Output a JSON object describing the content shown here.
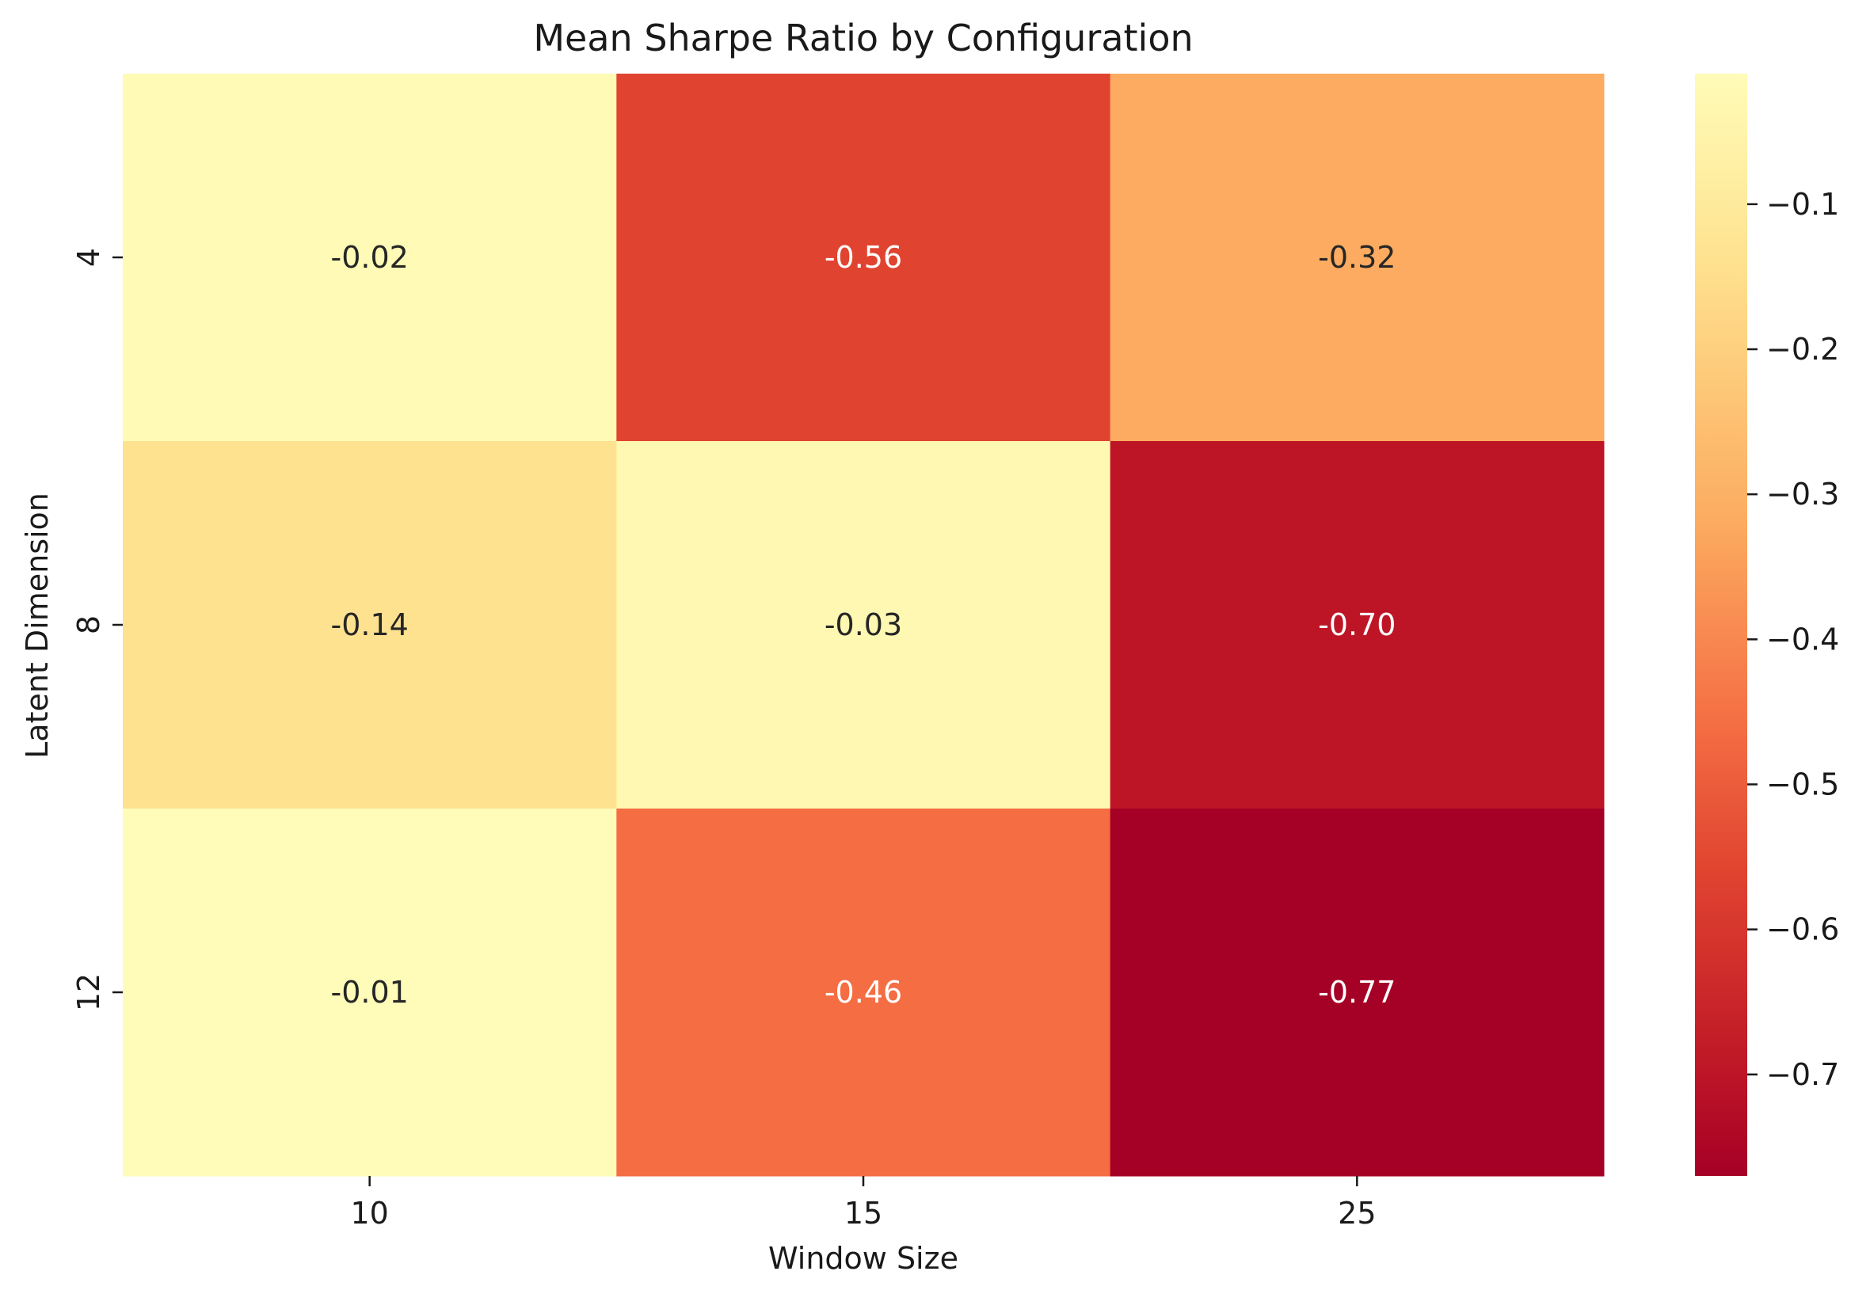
{
  "chart_data": {
    "type": "heatmap",
    "title": "Mean Sharpe Ratio by Configuration",
    "xlabel": "Window Size",
    "ylabel": "Latent Dimension",
    "x_categories": [
      "10",
      "15",
      "25"
    ],
    "y_categories": [
      "4",
      "8",
      "12"
    ],
    "values": [
      [
        -0.02,
        -0.56,
        -0.32
      ],
      [
        -0.14,
        -0.03,
        -0.7
      ],
      [
        -0.01,
        -0.46,
        -0.77
      ]
    ],
    "cell_labels": [
      [
        "-0.02",
        "-0.56",
        "-0.32"
      ],
      [
        "-0.14",
        "-0.03",
        "-0.70"
      ],
      [
        "-0.01",
        "-0.46",
        "-0.77"
      ]
    ],
    "colormap": "YlOrRd reversed (dark red = low, pale yellow = high)",
    "color_range": [
      -0.77,
      -0.01
    ],
    "colorbar_ticks": [
      -0.1,
      -0.2,
      -0.3,
      -0.4,
      -0.5,
      -0.6,
      -0.7
    ],
    "colorbar_tick_labels": [
      "−0.1",
      "−0.2",
      "−0.3",
      "−0.4",
      "−0.5",
      "−0.6",
      "−0.7"
    ],
    "grid": false,
    "legend": "colorbar on right"
  },
  "colors": {
    "dark_text": "#262626",
    "light_text": "#ffffff",
    "colormap_stops": [
      {
        "value": -0.77,
        "color": "#a50026"
      },
      {
        "value": -0.7,
        "color": "#bd1526"
      },
      {
        "value": -0.56,
        "color": "#e04430"
      },
      {
        "value": -0.46,
        "color": "#f46d43"
      },
      {
        "value": -0.32,
        "color": "#fcab60"
      },
      {
        "value": -0.14,
        "color": "#fee28f"
      },
      {
        "value": -0.03,
        "color": "#fff8b2"
      },
      {
        "value": -0.01,
        "color": "#fffbb8"
      }
    ]
  }
}
